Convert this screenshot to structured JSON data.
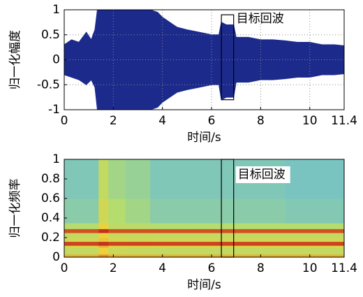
{
  "chart_data": [
    {
      "type": "envelope",
      "ylabel": "归一化幅度",
      "xlabel": "时间/s",
      "color": "#1c2a8c",
      "grid": true,
      "xlim": [
        0,
        11.4
      ],
      "xticks": [
        0,
        2,
        4,
        6,
        8,
        10,
        11.4
      ],
      "ylim": [
        -1,
        1
      ],
      "yticks": [
        -1,
        -0.5,
        0,
        0.5,
        1
      ],
      "x": [
        0,
        0.3,
        0.6,
        0.9,
        1.1,
        1.25,
        1.35,
        1.5,
        2,
        2.5,
        3,
        3.5,
        3.8,
        4,
        4.3,
        4.6,
        5,
        5.5,
        6,
        6.3,
        6.4,
        6.6,
        6.9,
        7,
        7.5,
        8,
        8.5,
        9,
        9.5,
        10,
        10.5,
        11,
        11.4
      ],
      "upper": [
        0.3,
        0.4,
        0.35,
        0.55,
        0.4,
        0.6,
        1,
        1,
        1,
        1,
        1,
        1,
        0.95,
        0.85,
        0.75,
        0.65,
        0.6,
        0.55,
        0.5,
        0.5,
        0.75,
        0.7,
        0.7,
        0.45,
        0.45,
        0.4,
        0.4,
        0.38,
        0.35,
        0.35,
        0.3,
        0.3,
        0.28
      ],
      "lower": [
        -0.3,
        -0.35,
        -0.4,
        -0.5,
        -0.4,
        -0.55,
        -1,
        -1,
        -1,
        -1,
        -1,
        -1,
        -0.95,
        -0.85,
        -0.75,
        -0.65,
        -0.6,
        -0.55,
        -0.5,
        -0.5,
        -0.8,
        -0.75,
        -0.75,
        -0.45,
        -0.45,
        -0.4,
        -0.4,
        -0.38,
        -0.35,
        -0.35,
        -0.3,
        -0.3,
        -0.28
      ],
      "highlight": {
        "x": [
          6.4,
          6.9
        ],
        "y": [
          -0.8,
          0.9
        ],
        "label": "目标回波"
      }
    },
    {
      "type": "heatmap",
      "ylabel": "归一化频率",
      "xlabel": "时间/s",
      "colormap": "jet",
      "grid": false,
      "xlim": [
        0,
        11.4
      ],
      "xticks": [
        0,
        2,
        4,
        6,
        8,
        10,
        11.4
      ],
      "ylim": [
        0,
        1
      ],
      "yticks": [
        0,
        0.2,
        0.4,
        0.6,
        0.8,
        1
      ],
      "x_edges": [
        0,
        1,
        1.4,
        1.8,
        2.5,
        3.5,
        5,
        6.5,
        7,
        9,
        11.4
      ],
      "y_edges": [
        0,
        0.03,
        0.1,
        0.12,
        0.16,
        0.2,
        0.25,
        0.29,
        0.35,
        0.6,
        1
      ],
      "values": [
        [
          0.75,
          0.75,
          0.8,
          0.75,
          0.75,
          0.75,
          0.75,
          0.75,
          0.75,
          0.75
        ],
        [
          0.55,
          0.55,
          0.7,
          0.58,
          0.56,
          0.55,
          0.55,
          0.55,
          0.55,
          0.55
        ],
        [
          0.65,
          0.65,
          0.75,
          0.66,
          0.65,
          0.65,
          0.65,
          0.65,
          0.65,
          0.65
        ],
        [
          0.92,
          0.92,
          0.95,
          0.92,
          0.92,
          0.92,
          0.92,
          0.92,
          0.92,
          0.92
        ],
        [
          0.6,
          0.6,
          0.72,
          0.62,
          0.6,
          0.6,
          0.6,
          0.6,
          0.6,
          0.6
        ],
        [
          0.55,
          0.55,
          0.7,
          0.57,
          0.56,
          0.55,
          0.55,
          0.55,
          0.55,
          0.55
        ],
        [
          0.9,
          0.9,
          0.95,
          0.9,
          0.9,
          0.9,
          0.9,
          0.9,
          0.9,
          0.9
        ],
        [
          0.5,
          0.5,
          0.68,
          0.54,
          0.52,
          0.5,
          0.5,
          0.5,
          0.5,
          0.5
        ],
        [
          0.38,
          0.38,
          0.6,
          0.5,
          0.45,
          0.38,
          0.38,
          0.38,
          0.38,
          0.36
        ],
        [
          0.35,
          0.35,
          0.55,
          0.45,
          0.42,
          0.35,
          0.35,
          0.35,
          0.35,
          0.33
        ]
      ],
      "highlight": {
        "x": [
          6.4,
          6.9
        ],
        "y": [
          0,
          1
        ],
        "label": "目标回波"
      }
    }
  ]
}
